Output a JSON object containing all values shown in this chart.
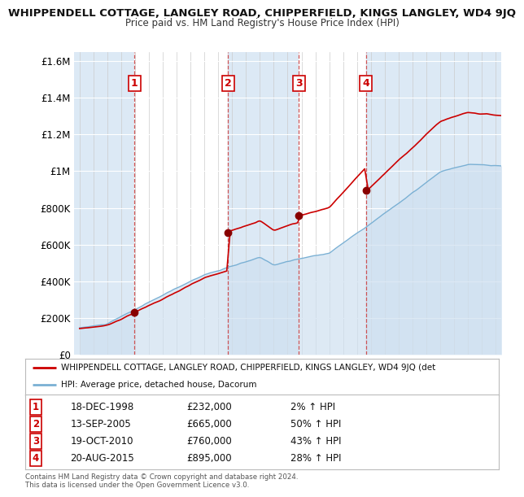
{
  "title": "WHIPPENDELL COTTAGE, LANGLEY ROAD, CHIPPERFIELD, KINGS LANGLEY, WD4 9JQ",
  "subtitle": "Price paid vs. HM Land Registry's House Price Index (HPI)",
  "ylim": [
    0,
    1650000
  ],
  "yticks": [
    0,
    200000,
    400000,
    600000,
    800000,
    1000000,
    1200000,
    1400000,
    1600000
  ],
  "ytick_labels": [
    "£0",
    "£200K",
    "£400K",
    "£600K",
    "£800K",
    "£1M",
    "£1.2M",
    "£1.4M",
    "£1.6M"
  ],
  "sale_dates_num": [
    1998.96,
    2005.71,
    2010.8,
    2015.64
  ],
  "sale_prices": [
    232000,
    665000,
    760000,
    895000
  ],
  "sale_labels": [
    "1",
    "2",
    "3",
    "4"
  ],
  "red_line_color": "#cc0000",
  "blue_line_color": "#7ab0d4",
  "hpi_fill_color": "#dce9f5",
  "background_color": "#f0f4fa",
  "grid_color": "#ffffff",
  "legend_entries": [
    "WHIPPENDELL COTTAGE, LANGLEY ROAD, CHIPPERFIELD, KINGS LANGLEY, WD4 9JQ (det",
    "HPI: Average price, detached house, Dacorum"
  ],
  "table_rows": [
    [
      "1",
      "18-DEC-1998",
      "£232,000",
      "2% ↑ HPI"
    ],
    [
      "2",
      "13-SEP-2005",
      "£665,000",
      "50% ↑ HPI"
    ],
    [
      "3",
      "19-OCT-2010",
      "£760,000",
      "43% ↑ HPI"
    ],
    [
      "4",
      "20-AUG-2015",
      "£895,000",
      "28% ↑ HPI"
    ]
  ],
  "footer": "Contains HM Land Registry data © Crown copyright and database right 2024.\nThis data is licensed under the Open Government Licence v3.0.",
  "xmin": 1994.6,
  "xmax": 2025.4
}
